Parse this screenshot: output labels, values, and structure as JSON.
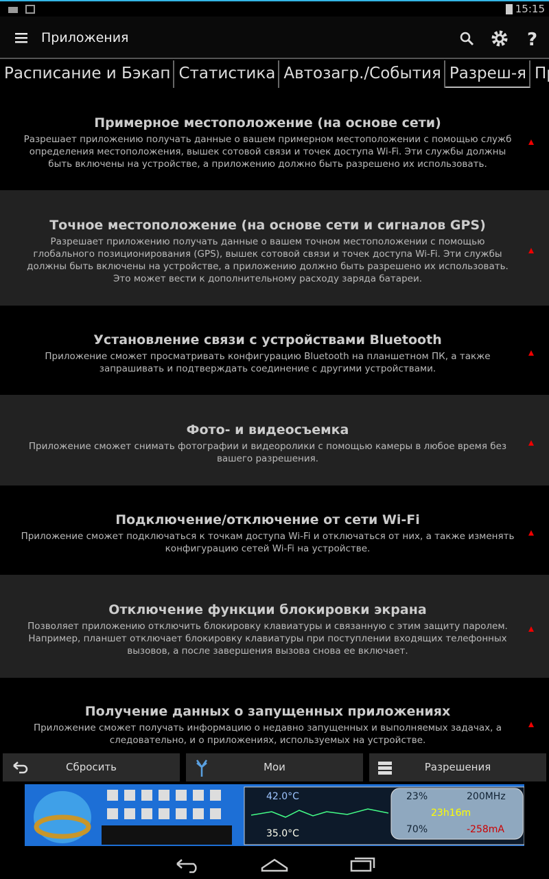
{
  "status": {
    "time": "15:15"
  },
  "toolbar": {
    "title": "Приложения"
  },
  "tabs": [
    "Расписание и Бэкап",
    "Статистика",
    "Автозагр./События",
    "Разреш-я",
    "При"
  ],
  "items": [
    {
      "title": "Примерное местоположение (на основе сети)",
      "description": "Разрешает приложению получать данные о вашем примерном местоположении с помощью служб определения местоположения, вышек сотовой связи и точек доступа Wi-Fi. Эти службы должны быть включены на устройстве, а приложению должно быть разрешено их использовать."
    },
    {
      "title": "Точное местоположение (на основе сети и сигналов GPS)",
      "description": "Разрешает приложению получать данные о вашем точном местоположении с помощью глобального позиционирования (GPS), вышек сотовой связи и точек доступа Wi-Fi. Эти службы должны быть включены на устройстве, а приложению должно быть разрешено их использовать. Это может вести к дополнительному расходу заряда батареи."
    },
    {
      "title": "Установление связи с устройствами Bluetooth",
      "description": "Приложение сможет просматривать конфигурацию Bluetooth на планшетном ПК, а также запрашивать и подтверждать соединение с другими устройствами."
    },
    {
      "title": "Фото- и видеосъемка",
      "description": "Приложение сможет снимать фотографии и видеоролики с помощью камеры в любое время без вашего разрешения."
    },
    {
      "title": "Подключение/отключение от сети Wi-Fi",
      "description": "Приложение сможет подключаться к точкам доступа Wi-Fi и отключаться от них, а также изменять конфигурацию сетей Wi-Fi на устройстве."
    },
    {
      "title": "Отключение функции блокировки экрана",
      "description": "Позволяет приложению отключить блокировку клавиатуры и связанную с этим защиту паролем. Например, планшет отключает блокировку клавиатуры при поступлении входящих телефонных вызовов, а после завершения вызова снова ее включает."
    },
    {
      "title": "Получение данных о запущенных приложениях",
      "description": "Приложение сможет получать информацию о недавно запущенных и выполняемых задачах, а следовательно, и о приложениях, используемых на устройстве."
    }
  ],
  "buttons": [
    "Сбросить",
    "Мои",
    "Разрешения"
  ],
  "ad": {
    "temp_top": "42.0°C",
    "temp_bottom": "35.0°C",
    "cpu_load": "23%",
    "cpu_freq": "200MHz",
    "uptime": "23h16m",
    "battery": "70%",
    "current": "-258mA"
  }
}
